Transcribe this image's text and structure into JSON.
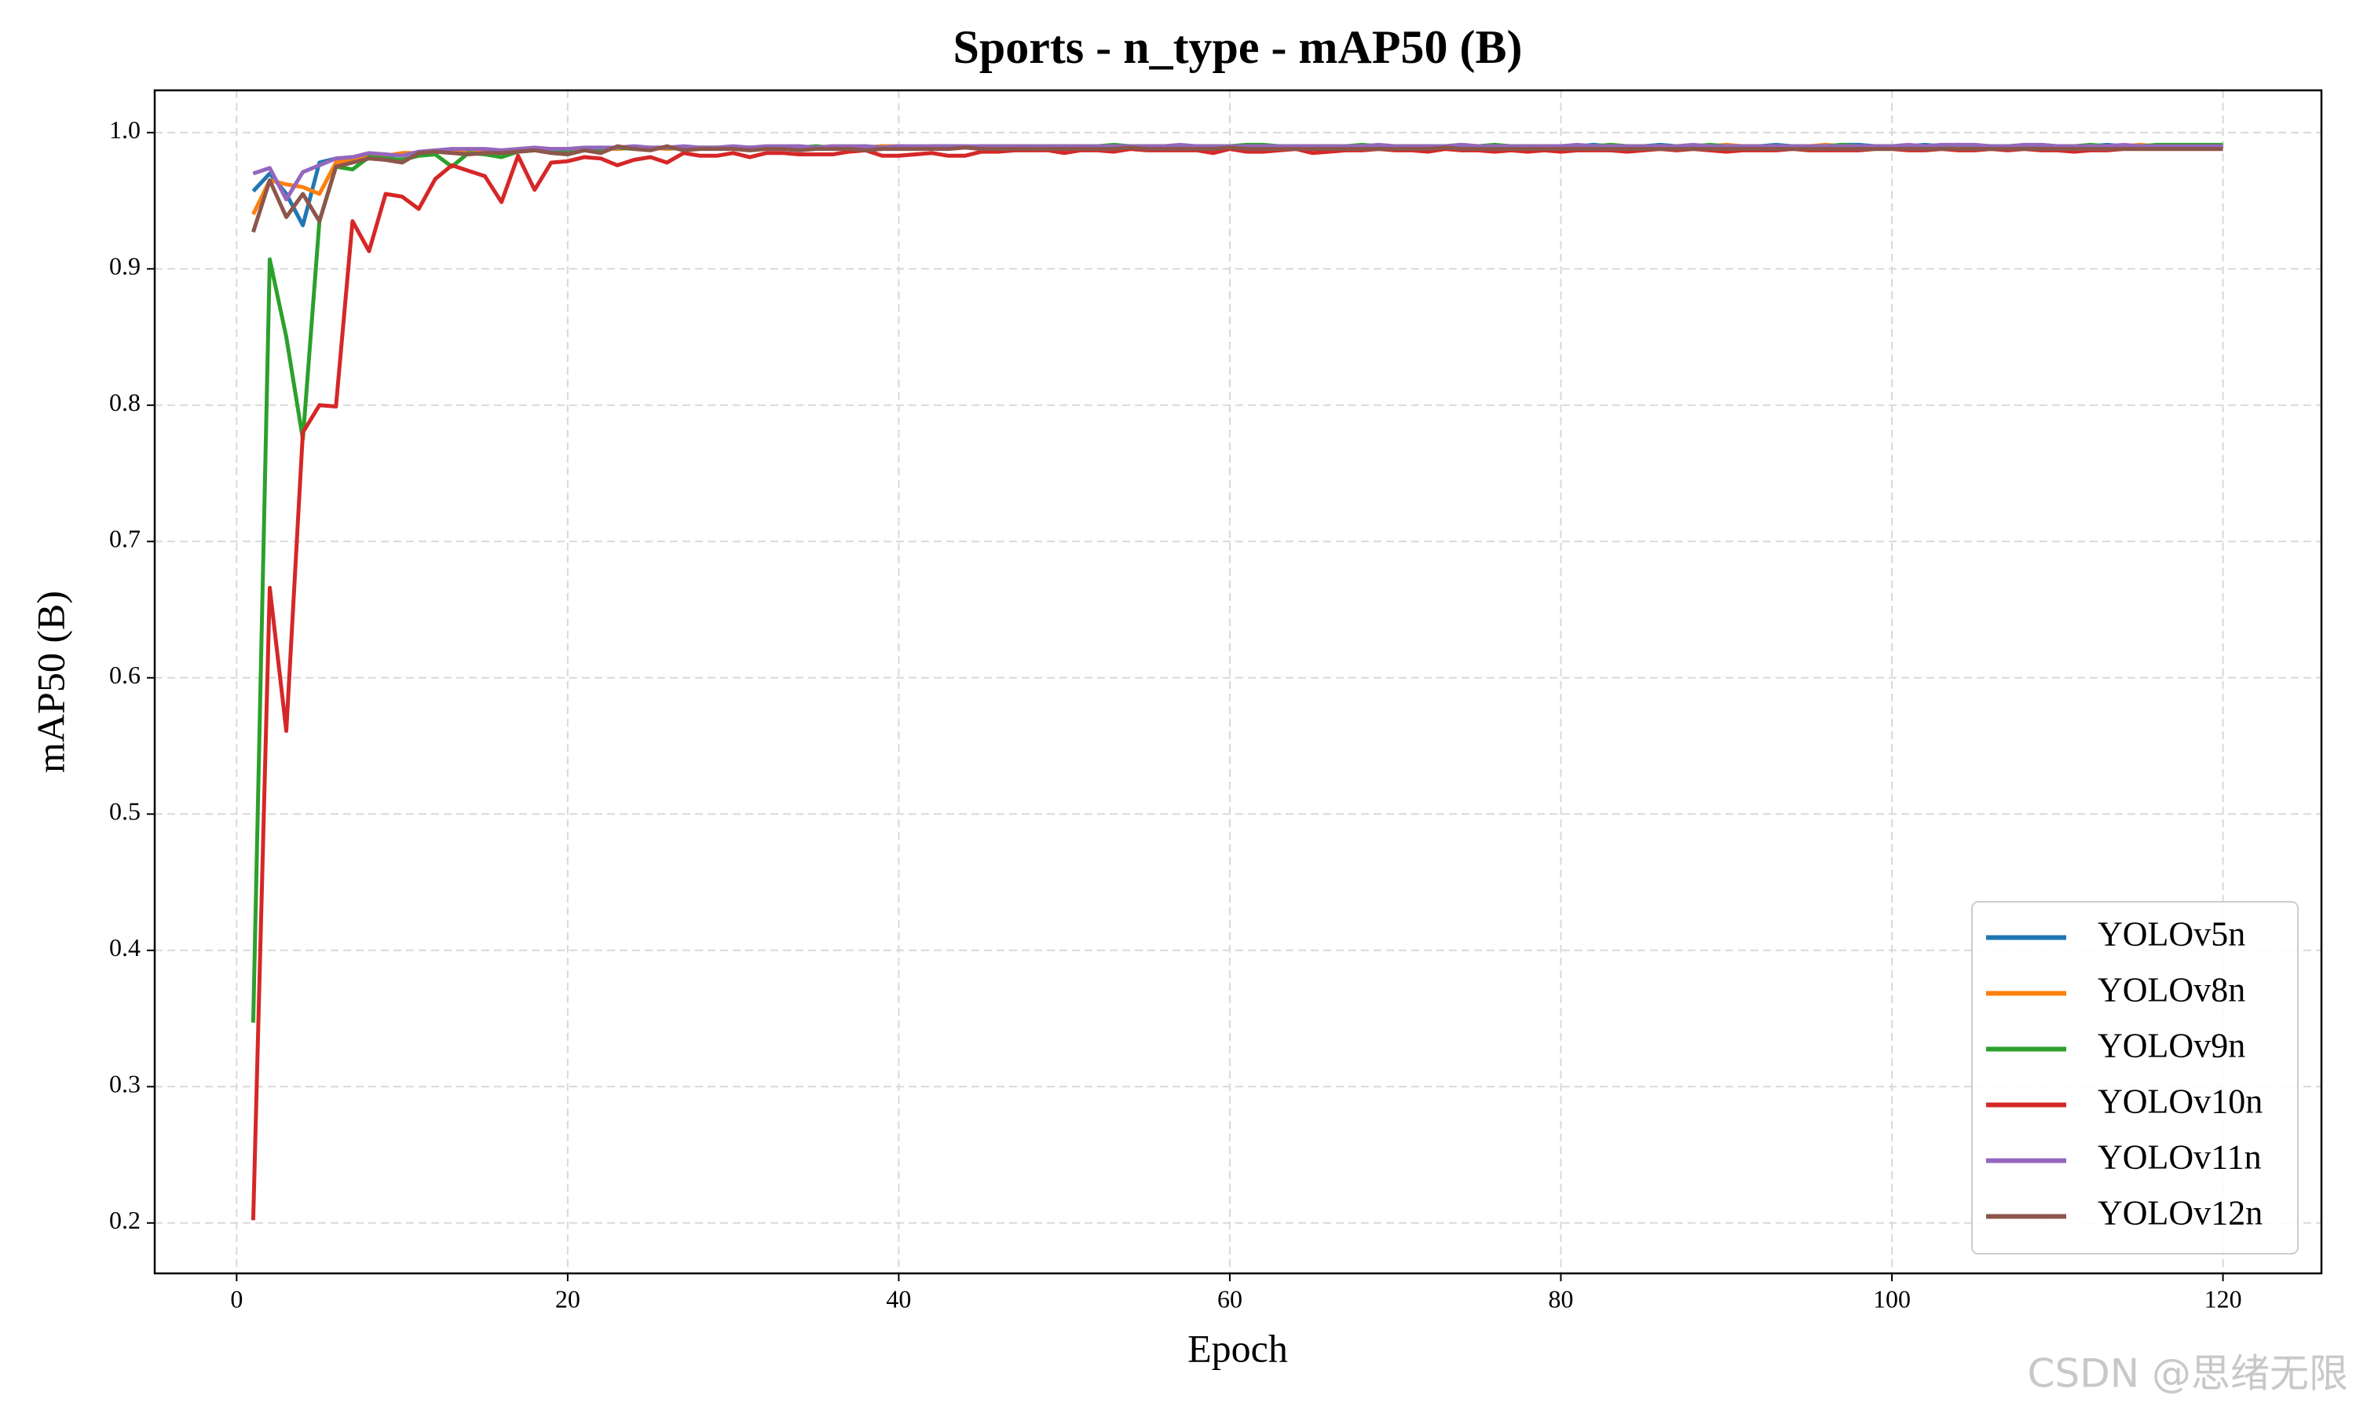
{
  "chart_data": {
    "type": "line",
    "title": "Sports - n_type - mAP50 (B)",
    "x_label": "Epoch",
    "y_label": "mAP50 (B)",
    "x": [
      1,
      2,
      3,
      4,
      5,
      6,
      7,
      8,
      9,
      10,
      11,
      12,
      13,
      14,
      15,
      16,
      17,
      18,
      19,
      20,
      21,
      22,
      23,
      24,
      25,
      26,
      27,
      28,
      29,
      30,
      31,
      32,
      33,
      34,
      35,
      36,
      37,
      38,
      39,
      40,
      41,
      42,
      43,
      44,
      45,
      46,
      47,
      48,
      49,
      50,
      51,
      52,
      53,
      54,
      55,
      56,
      57,
      58,
      59,
      60,
      61,
      62,
      63,
      64,
      65,
      66,
      67,
      68,
      69,
      70,
      71,
      72,
      73,
      74,
      75,
      76,
      77,
      78,
      79,
      80,
      81,
      82,
      83,
      84,
      85,
      86,
      87,
      88,
      89,
      90,
      91,
      92,
      93,
      94,
      95,
      96,
      97,
      98,
      99,
      100,
      101,
      102,
      103,
      104,
      105,
      106,
      107,
      108,
      109,
      110,
      111,
      112,
      113,
      114,
      115,
      116,
      117,
      118,
      119,
      120
    ],
    "xlim": [
      -4.95,
      125.95
    ],
    "xticks": [
      0,
      20,
      40,
      60,
      80,
      100,
      120
    ],
    "ylim": [
      0.163,
      1.031
    ],
    "yticks": [
      0.2,
      0.3,
      0.4,
      0.5,
      0.6,
      0.7,
      0.8,
      0.9,
      {
        "value": 1,
        "label": "1.0"
      }
    ],
    "grid": true,
    "legend": "lower right",
    "series": [
      {
        "name": "YOLOv5n",
        "color": "#1f77b4",
        "values": [
          0.957,
          0.97,
          0.955,
          0.932,
          0.978,
          0.981,
          0.982,
          0.983,
          0.983,
          0.984,
          0.985,
          0.986,
          0.986,
          0.987,
          0.987,
          0.986,
          0.987,
          0.988,
          0.987,
          0.988,
          0.988,
          0.989,
          0.988,
          0.989,
          0.988,
          0.989,
          0.989,
          0.988,
          0.989,
          0.989,
          0.989,
          0.988,
          0.989,
          0.989,
          0.989,
          0.988,
          0.989,
          0.989,
          0.99,
          0.989,
          0.989,
          0.989,
          0.99,
          0.99,
          0.989,
          0.989,
          0.99,
          0.989,
          0.99,
          0.99,
          0.989,
          0.99,
          0.99,
          0.989,
          0.99,
          0.99,
          0.989,
          0.99,
          0.99,
          0.99,
          0.99,
          0.99,
          0.989,
          0.99,
          0.99,
          0.99,
          0.99,
          0.989,
          0.99,
          0.99,
          0.99,
          0.99,
          0.99,
          0.991,
          0.99,
          0.99,
          0.99,
          0.99,
          0.99,
          0.99,
          0.99,
          0.991,
          0.99,
          0.99,
          0.99,
          0.991,
          0.99,
          0.99,
          0.99,
          0.99,
          0.99,
          0.99,
          0.991,
          0.99,
          0.99,
          0.99,
          0.991,
          0.991,
          0.99,
          0.99,
          0.99,
          0.991,
          0.99,
          0.991,
          0.99,
          0.99,
          0.99,
          0.99,
          0.991,
          0.99,
          0.99,
          0.99,
          0.991,
          0.99,
          0.99,
          0.99,
          0.99,
          0.99,
          0.99,
          0.99
        ]
      },
      {
        "name": "YOLOv8n",
        "color": "#ff7f0e",
        "values": [
          0.94,
          0.965,
          0.962,
          0.96,
          0.955,
          0.978,
          0.98,
          0.982,
          0.983,
          0.985,
          0.985,
          0.986,
          0.987,
          0.986,
          0.987,
          0.987,
          0.988,
          0.987,
          0.988,
          0.988,
          0.988,
          0.989,
          0.988,
          0.989,
          0.989,
          0.988,
          0.989,
          0.989,
          0.989,
          0.988,
          0.989,
          0.989,
          0.989,
          0.99,
          0.989,
          0.99,
          0.989,
          0.989,
          0.99,
          0.99,
          0.989,
          0.989,
          0.99,
          0.989,
          0.99,
          0.99,
          0.99,
          0.99,
          0.989,
          0.99,
          0.99,
          0.99,
          0.989,
          0.99,
          0.99,
          0.99,
          0.99,
          0.99,
          0.989,
          0.99,
          0.99,
          0.99,
          0.99,
          0.99,
          0.99,
          0.989,
          0.99,
          0.99,
          0.99,
          0.99,
          0.99,
          0.99,
          0.99,
          0.991,
          0.99,
          0.99,
          0.99,
          0.99,
          0.99,
          0.99,
          0.99,
          0.99,
          0.991,
          0.99,
          0.99,
          0.99,
          0.99,
          0.99,
          0.99,
          0.991,
          0.99,
          0.99,
          0.99,
          0.99,
          0.99,
          0.991,
          0.99,
          0.99,
          0.99,
          0.99,
          0.99,
          0.99,
          0.99,
          0.991,
          0.99,
          0.99,
          0.99,
          0.99,
          0.99,
          0.99,
          0.99,
          0.99,
          0.99,
          0.99,
          0.991,
          0.99,
          0.99,
          0.99,
          0.99,
          0.99
        ]
      },
      {
        "name": "YOLOv9n",
        "color": "#2ca02c",
        "values": [
          0.347,
          0.907,
          0.85,
          0.775,
          0.935,
          0.975,
          0.973,
          0.982,
          0.981,
          0.98,
          0.983,
          0.984,
          0.975,
          0.985,
          0.984,
          0.982,
          0.986,
          0.987,
          0.986,
          0.987,
          0.988,
          0.988,
          0.989,
          0.988,
          0.989,
          0.989,
          0.988,
          0.989,
          0.989,
          0.989,
          0.989,
          0.989,
          0.989,
          0.989,
          0.99,
          0.989,
          0.989,
          0.99,
          0.989,
          0.99,
          0.989,
          0.99,
          0.99,
          0.989,
          0.99,
          0.99,
          0.99,
          0.99,
          0.99,
          0.99,
          0.99,
          0.99,
          0.991,
          0.99,
          0.99,
          0.99,
          0.99,
          0.99,
          0.99,
          0.99,
          0.991,
          0.991,
          0.99,
          0.99,
          0.99,
          0.99,
          0.99,
          0.991,
          0.99,
          0.99,
          0.99,
          0.99,
          0.99,
          0.99,
          0.99,
          0.991,
          0.99,
          0.99,
          0.99,
          0.99,
          0.99,
          0.99,
          0.991,
          0.99,
          0.99,
          0.99,
          0.99,
          0.99,
          0.991,
          0.99,
          0.99,
          0.99,
          0.99,
          0.99,
          0.99,
          0.99,
          0.991,
          0.99,
          0.99,
          0.99,
          0.99,
          0.99,
          0.99,
          0.991,
          0.99,
          0.99,
          0.99,
          0.99,
          0.99,
          0.99,
          0.99,
          0.991,
          0.99,
          0.99,
          0.99,
          0.991,
          0.991,
          0.991,
          0.991,
          0.991
        ]
      },
      {
        "name": "YOLOv10n",
        "color": "#d62728",
        "values": [
          0.202,
          0.666,
          0.561,
          0.78,
          0.8,
          0.799,
          0.935,
          0.913,
          0.955,
          0.953,
          0.944,
          0.966,
          0.976,
          0.972,
          0.968,
          0.949,
          0.983,
          0.958,
          0.978,
          0.979,
          0.982,
          0.981,
          0.976,
          0.98,
          0.982,
          0.978,
          0.985,
          0.983,
          0.983,
          0.985,
          0.982,
          0.985,
          0.985,
          0.984,
          0.984,
          0.984,
          0.986,
          0.987,
          0.983,
          0.983,
          0.984,
          0.985,
          0.983,
          0.983,
          0.986,
          0.986,
          0.987,
          0.987,
          0.987,
          0.985,
          0.987,
          0.987,
          0.986,
          0.988,
          0.987,
          0.987,
          0.987,
          0.987,
          0.985,
          0.988,
          0.986,
          0.986,
          0.987,
          0.988,
          0.985,
          0.986,
          0.987,
          0.987,
          0.988,
          0.987,
          0.987,
          0.986,
          0.988,
          0.987,
          0.987,
          0.986,
          0.987,
          0.986,
          0.987,
          0.986,
          0.987,
          0.987,
          0.987,
          0.986,
          0.987,
          0.988,
          0.987,
          0.988,
          0.987,
          0.986,
          0.987,
          0.987,
          0.987,
          0.988,
          0.987,
          0.987,
          0.987,
          0.987,
          0.988,
          0.988,
          0.987,
          0.987,
          0.988,
          0.987,
          0.987,
          0.988,
          0.987,
          0.988,
          0.987,
          0.987,
          0.986,
          0.987,
          0.987,
          0.988,
          0.988,
          0.988,
          0.988,
          0.988,
          0.988,
          0.988
        ]
      },
      {
        "name": "YOLOv11n",
        "color": "#9467bd",
        "values": [
          0.97,
          0.974,
          0.951,
          0.971,
          0.976,
          0.981,
          0.982,
          0.985,
          0.984,
          0.983,
          0.986,
          0.987,
          0.988,
          0.988,
          0.988,
          0.987,
          0.988,
          0.989,
          0.988,
          0.988,
          0.989,
          0.989,
          0.989,
          0.99,
          0.989,
          0.989,
          0.99,
          0.989,
          0.989,
          0.99,
          0.989,
          0.99,
          0.99,
          0.99,
          0.989,
          0.99,
          0.99,
          0.99,
          0.989,
          0.99,
          0.99,
          0.99,
          0.99,
          0.99,
          0.99,
          0.99,
          0.99,
          0.99,
          0.99,
          0.99,
          0.99,
          0.99,
          0.99,
          0.99,
          0.99,
          0.99,
          0.991,
          0.99,
          0.99,
          0.99,
          0.99,
          0.99,
          0.99,
          0.99,
          0.99,
          0.99,
          0.99,
          0.99,
          0.991,
          0.99,
          0.99,
          0.99,
          0.99,
          0.991,
          0.99,
          0.99,
          0.99,
          0.99,
          0.99,
          0.99,
          0.991,
          0.99,
          0.99,
          0.99,
          0.99,
          0.99,
          0.99,
          0.991,
          0.99,
          0.99,
          0.99,
          0.99,
          0.99,
          0.99,
          0.99,
          0.99,
          0.99,
          0.99,
          0.99,
          0.99,
          0.991,
          0.99,
          0.991,
          0.991,
          0.991,
          0.99,
          0.99,
          0.991,
          0.991,
          0.99,
          0.99,
          0.99,
          0.99,
          0.991,
          0.99,
          0.99,
          0.99,
          0.99,
          0.99,
          0.99
        ]
      },
      {
        "name": "YOLOv12n",
        "color": "#8c564b",
        "values": [
          0.927,
          0.965,
          0.938,
          0.955,
          0.935,
          0.975,
          0.978,
          0.981,
          0.98,
          0.978,
          0.985,
          0.986,
          0.985,
          0.984,
          0.985,
          0.985,
          0.986,
          0.987,
          0.985,
          0.984,
          0.987,
          0.985,
          0.99,
          0.988,
          0.987,
          0.99,
          0.987,
          0.988,
          0.988,
          0.988,
          0.987,
          0.988,
          0.988,
          0.987,
          0.988,
          0.988,
          0.988,
          0.987,
          0.988,
          0.988,
          0.988,
          0.988,
          0.988,
          0.989,
          0.988,
          0.988,
          0.988,
          0.988,
          0.988,
          0.988,
          0.988,
          0.988,
          0.988,
          0.989,
          0.988,
          0.988,
          0.988,
          0.988,
          0.988,
          0.989,
          0.988,
          0.988,
          0.988,
          0.988,
          0.988,
          0.988,
          0.988,
          0.988,
          0.988,
          0.988,
          0.988,
          0.988,
          0.989,
          0.988,
          0.988,
          0.988,
          0.988,
          0.988,
          0.988,
          0.988,
          0.988,
          0.988,
          0.988,
          0.988,
          0.988,
          0.988,
          0.988,
          0.988,
          0.988,
          0.988,
          0.988,
          0.988,
          0.988,
          0.988,
          0.988,
          0.988,
          0.988,
          0.988,
          0.988,
          0.988,
          0.988,
          0.988,
          0.988,
          0.988,
          0.988,
          0.988,
          0.988,
          0.988,
          0.988,
          0.988,
          0.988,
          0.988,
          0.988,
          0.988,
          0.988,
          0.988,
          0.988,
          0.988,
          0.988,
          0.988
        ]
      }
    ],
    "watermark": "CSDN @思绪无限"
  }
}
